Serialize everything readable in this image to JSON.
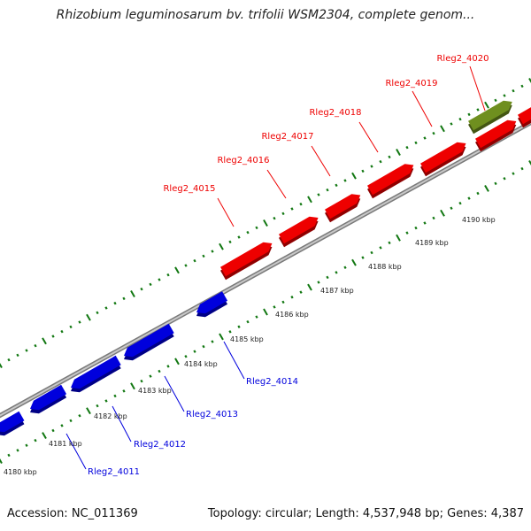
{
  "title": "Rhizobium leguminosarum bv. trifolii WSM2304, complete genom...",
  "footer": {
    "accession": "Accession: NC_011369",
    "summary": "Topology: circular; Length: 4,537,948 bp; Genes: 4,387"
  },
  "colors": {
    "forward_gene": "#ee0000",
    "reverse_gene": "#0000dd",
    "other_feature": "#6f8f1f",
    "backbone": "#999999",
    "tick_marks": "#117711"
  },
  "scale_labels": [
    "4180 kbp",
    "4181 kbp",
    "4182 kbp",
    "4183 kbp",
    "4184 kbp",
    "4185 kbp",
    "4186 kbp",
    "4187 kbp",
    "4188 kbp",
    "4189 kbp",
    "4190 kbp"
  ],
  "forward_genes": [
    "Rleg2_4015",
    "Rleg2_4016",
    "Rleg2_4017",
    "Rleg2_4018",
    "Rleg2_4019"
  ],
  "other_features": [
    "Rleg2_4020"
  ],
  "reverse_genes": [
    "Rleg2_4011",
    "Rleg2_4012",
    "Rleg2_4013",
    "Rleg2_4014"
  ]
}
